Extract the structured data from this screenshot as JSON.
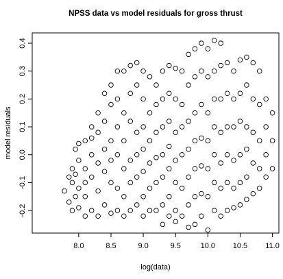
{
  "chart_data": {
    "type": "scatter",
    "title": "NPSS data vs model residuals for gross thrust",
    "xlabel": "log(data)",
    "ylabel": "model residuals",
    "color": "#000000",
    "xlim": [
      7.28,
      11.1
    ],
    "ylim": [
      -0.281,
      0.437
    ],
    "xticks": [
      {
        "value": 8,
        "label": "8.0"
      },
      8.5,
      {
        "value": 9,
        "label": "9.0"
      },
      9.5,
      {
        "value": 10,
        "label": "10.0"
      },
      10.5,
      {
        "value": 11,
        "label": "11.0"
      }
    ],
    "yticks": [
      -0.2,
      -0.1,
      {
        "value": 0,
        "label": "0.0"
      },
      0.1,
      0.2,
      0.3,
      0.4
    ],
    "x": [
      7.78,
      7.85,
      7.85,
      7.9,
      7.9,
      7.9,
      7.95,
      7.95,
      7.95,
      8.0,
      8.0,
      8.0,
      8.0,
      8.1,
      8.1,
      8.1,
      8.1,
      8.1,
      8.2,
      8.2,
      8.2,
      8.2,
      8.2,
      8.3,
      8.3,
      8.3,
      8.3,
      8.3,
      8.4,
      8.4,
      8.4,
      8.4,
      8.4,
      8.5,
      8.5,
      8.5,
      8.5,
      8.5,
      8.5,
      8.6,
      8.6,
      8.6,
      8.6,
      8.6,
      8.6,
      8.7,
      8.7,
      8.7,
      8.7,
      8.7,
      8.7,
      8.8,
      8.8,
      8.8,
      8.8,
      8.8,
      8.8,
      8.9,
      8.9,
      8.9,
      8.9,
      8.9,
      8.9,
      9.0,
      9.0,
      9.0,
      9.0,
      9.0,
      9.0,
      9.0,
      9.1,
      9.1,
      9.1,
      9.1,
      9.1,
      9.1,
      9.2,
      9.2,
      9.2,
      9.2,
      9.2,
      9.2,
      9.3,
      9.3,
      9.3,
      9.3,
      9.3,
      9.3,
      9.3,
      9.4,
      9.4,
      9.4,
      9.4,
      9.4,
      9.4,
      9.4,
      9.5,
      9.5,
      9.5,
      9.5,
      9.5,
      9.5,
      9.5,
      9.6,
      9.6,
      9.6,
      9.6,
      9.6,
      9.6,
      9.7,
      9.7,
      9.7,
      9.7,
      9.7,
      9.7,
      9.7,
      9.8,
      9.8,
      9.8,
      9.8,
      9.8,
      9.8,
      9.8,
      9.9,
      9.9,
      9.9,
      9.9,
      9.9,
      9.9,
      9.9,
      10.0,
      10.0,
      10.0,
      10.0,
      10.0,
      10.0,
      10.0,
      10.1,
      10.1,
      10.1,
      10.1,
      10.1,
      10.1,
      10.1,
      10.2,
      10.2,
      10.2,
      10.2,
      10.2,
      10.2,
      10.2,
      10.3,
      10.3,
      10.3,
      10.3,
      10.3,
      10.3,
      10.4,
      10.4,
      10.4,
      10.4,
      10.4,
      10.4,
      10.5,
      10.5,
      10.5,
      10.5,
      10.5,
      10.5,
      10.6,
      10.6,
      10.6,
      10.6,
      10.6,
      10.6,
      10.7,
      10.7,
      10.7,
      10.7,
      10.7,
      10.8,
      10.8,
      10.8,
      10.8,
      10.8,
      10.9,
      10.9,
      10.9,
      10.9,
      11.0,
      11.0,
      11.0
    ],
    "values": [
      -0.13,
      -0.17,
      -0.08,
      -0.2,
      -0.1,
      -0.05,
      0.02,
      -0.15,
      -0.07,
      0.04,
      -0.02,
      -0.12,
      -0.19,
      0.05,
      -0.05,
      -0.1,
      -0.22,
      -0.15,
      0.1,
      0.0,
      -0.08,
      -0.2,
      0.06,
      0.15,
      0.08,
      -0.03,
      -0.13,
      -0.22,
      0.22,
      0.12,
      0.02,
      -0.06,
      -0.18,
      0.25,
      0.18,
      0.05,
      -0.1,
      -0.21,
      -0.02,
      0.3,
      0.2,
      0.1,
      0.0,
      -0.12,
      -0.2,
      0.3,
      0.15,
      0.05,
      -0.05,
      -0.15,
      -0.22,
      0.32,
      0.22,
      0.12,
      -0.02,
      -0.1,
      -0.2,
      0.33,
      0.25,
      0.08,
      0.0,
      -0.08,
      -0.18,
      0.3,
      0.2,
      0.1,
      0.02,
      -0.06,
      -0.15,
      -0.22,
      0.28,
      0.15,
      0.05,
      -0.03,
      -0.12,
      -0.2,
      0.25,
      0.18,
      0.08,
      -0.01,
      -0.1,
      -0.2,
      0.3,
      0.2,
      0.1,
      0.0,
      -0.08,
      -0.18,
      -0.25,
      0.32,
      0.22,
      0.12,
      0.03,
      -0.05,
      -0.15,
      -0.22,
      0.31,
      0.2,
      0.08,
      -0.02,
      -0.1,
      -0.2,
      -0.24,
      0.3,
      0.18,
      0.1,
      0.0,
      -0.12,
      -0.22,
      0.36,
      0.25,
      0.12,
      0.02,
      -0.08,
      -0.18,
      -0.26,
      0.38,
      0.28,
      0.15,
      0.05,
      -0.05,
      -0.15,
      -0.25,
      0.4,
      0.3,
      0.18,
      0.06,
      -0.04,
      -0.14,
      -0.22,
      0.38,
      0.28,
      0.15,
      0.05,
      -0.05,
      -0.15,
      -0.27,
      0.41,
      0.3,
      0.2,
      0.1,
      0.0,
      -0.1,
      -0.2,
      0.4,
      0.32,
      0.2,
      0.08,
      -0.03,
      -0.12,
      -0.22,
      0.33,
      0.22,
      0.1,
      0.0,
      -0.1,
      -0.2,
      0.3,
      0.2,
      0.1,
      -0.02,
      -0.12,
      -0.19,
      0.34,
      0.22,
      0.12,
      0.0,
      -0.1,
      -0.18,
      0.35,
      0.25,
      0.1,
      0.02,
      -0.08,
      -0.16,
      0.33,
      0.2,
      0.08,
      -0.03,
      -0.14,
      0.3,
      0.18,
      0.05,
      -0.05,
      -0.12,
      0.2,
      0.1,
      0.0,
      -0.08,
      0.15,
      0.05,
      -0.05
    ]
  }
}
